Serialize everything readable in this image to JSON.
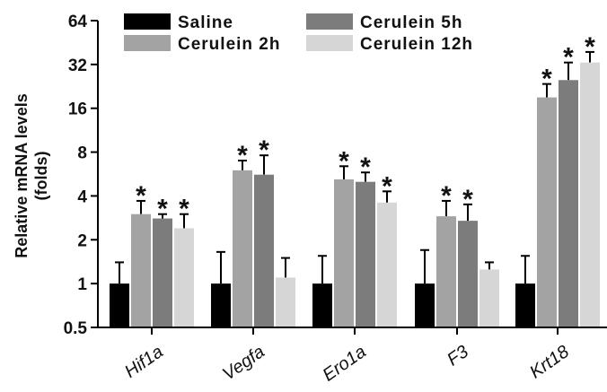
{
  "chart_data": {
    "type": "bar",
    "yscale": "log2",
    "ylim": [
      0.5,
      64
    ],
    "yticks": [
      0.5,
      1,
      2,
      4,
      8,
      16,
      32,
      64
    ],
    "ytick_labels": [
      "0.5",
      "1",
      "2",
      "4",
      "8",
      "16",
      "32",
      "64"
    ],
    "ylabel_line1": "Relative mRNA levels",
    "ylabel_line2": "(folds)",
    "categories": [
      "Hif1a",
      "Vegfa",
      "Ero1a",
      "F3",
      "Krt18"
    ],
    "series": [
      {
        "name": "Saline",
        "color": "#000000",
        "values": [
          1,
          1,
          1,
          1,
          1
        ],
        "errors": [
          1.4,
          1.65,
          1.55,
          1.7,
          1.55
        ],
        "sig": [
          false,
          false,
          false,
          false,
          false
        ]
      },
      {
        "name": "Cerulein 2h",
        "color": "#a3a3a3",
        "values": [
          3.0,
          6.0,
          5.2,
          2.9,
          19.0
        ],
        "errors": [
          3.7,
          7.0,
          6.4,
          3.7,
          23.5
        ],
        "sig": [
          true,
          true,
          true,
          true,
          true
        ]
      },
      {
        "name": "Cerulein 5h",
        "color": "#7c7c7c",
        "values": [
          2.8,
          5.6,
          5.0,
          2.7,
          25.0
        ],
        "errors": [
          3.0,
          7.6,
          5.8,
          3.5,
          33.0
        ],
        "sig": [
          true,
          true,
          true,
          true,
          true
        ]
      },
      {
        "name": "Cerulein 12h",
        "color": "#d6d6d6",
        "values": [
          2.4,
          1.1,
          3.6,
          1.25,
          33.0
        ],
        "errors": [
          3.0,
          1.5,
          4.3,
          1.4,
          39.0
        ],
        "sig": [
          true,
          false,
          true,
          false,
          true
        ]
      }
    ],
    "legend_position": "top-left",
    "significance_marker": "*",
    "grid": false
  }
}
